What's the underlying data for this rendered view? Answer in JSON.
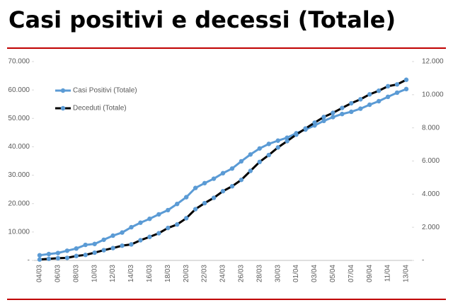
{
  "chart_data": {
    "type": "line",
    "title": "Casi positivi e decessi (Totale)",
    "categories": [
      "04/03",
      null,
      "06/03",
      null,
      "08/03",
      null,
      "10/03",
      null,
      "12/03",
      null,
      "14/03",
      null,
      "16/03",
      null,
      "18/03",
      null,
      "20/03",
      null,
      "22/03",
      null,
      "24/03",
      null,
      "26/03",
      null,
      "28/03",
      null,
      "30/03",
      null,
      "01/04",
      null,
      "03/04",
      null,
      "05/04",
      null,
      "07/04",
      null,
      "09/04",
      null,
      "11/04",
      null,
      "13/04"
    ],
    "series": [
      {
        "name": "Casi Positivi (Totale)",
        "color": "#5b9bd5",
        "marker_color": "#5b9bd5",
        "values": [
          1820,
          2251,
          2612,
          3420,
          4189,
          5469,
          5791,
          7280,
          8725,
          9820,
          11685,
          13272,
          14649,
          16220,
          17713,
          19884,
          22264,
          25515,
          27206,
          28761,
          30703,
          32346,
          34889,
          37298,
          39415,
          41007,
          42161,
          43208,
          44773,
          46065,
          47520,
          49118,
          50455,
          51534,
          52325,
          53414,
          54802,
          56048,
          57592,
          59052,
          60314
        ]
      },
      {
        "name": "Deceduti (Totale)",
        "color": "#000000",
        "marker_color": "#5b9bd5",
        "axis": "y2",
        "values": [
          55,
          98,
          135,
          154,
          267,
          333,
          468,
          617,
          744,
          890,
          966,
          1218,
          1420,
          1640,
          1959,
          2168,
          2549,
          3095,
          3456,
          3776,
          4178,
          4474,
          4861,
          5402,
          5944,
          6360,
          6818,
          7199,
          7593,
          7960,
          8311,
          8656,
          8905,
          9202,
          9484,
          9722,
          10022,
          10238,
          10511,
          10621,
          10901
        ]
      }
    ],
    "ylim": [
      0,
      70000
    ],
    "yticks": [
      {
        "value": 0,
        "label": "-"
      },
      {
        "value": 10000,
        "label": "10.000"
      },
      {
        "value": 20000,
        "label": "20.000"
      },
      {
        "value": 30000,
        "label": "30.000"
      },
      {
        "value": 40000,
        "label": "40.000"
      },
      {
        "value": 50000,
        "label": "50.000"
      },
      {
        "value": 60000,
        "label": "60.000"
      },
      {
        "value": 70000,
        "label": "70.000"
      }
    ],
    "y2lim": [
      0,
      12000
    ],
    "y2ticks": [
      {
        "value": 0,
        "label": "-"
      },
      {
        "value": 2000,
        "label": "2.000"
      },
      {
        "value": 4000,
        "label": "4.000"
      },
      {
        "value": 6000,
        "label": "6.000"
      },
      {
        "value": 8000,
        "label": "8.000"
      },
      {
        "value": 10000,
        "label": "10.000"
      },
      {
        "value": 12000,
        "label": "12.000"
      }
    ],
    "grid": false,
    "legend": "upper left"
  }
}
